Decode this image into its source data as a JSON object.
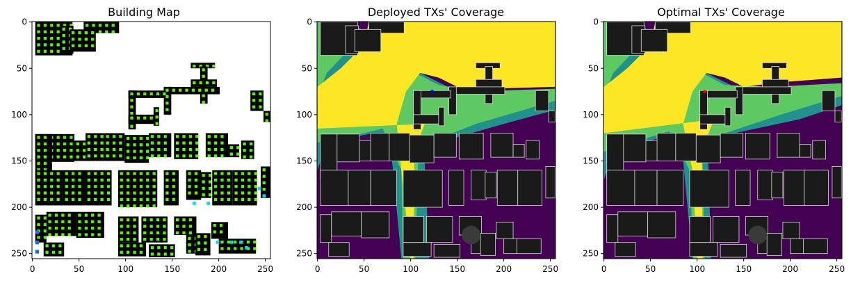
{
  "figure": {
    "panels": [
      {
        "id": "building-map",
        "title": "Building Map"
      },
      {
        "id": "deployed-coverage",
        "title": "Deployed TXs' Coverage"
      },
      {
        "id": "optimal-coverage",
        "title": "Optimal TXs' Coverage"
      }
    ]
  },
  "colors": {
    "building": "#000000",
    "candidate_tx": "#5cf00a",
    "highlight_cyan": "#00d7ff",
    "highlight_blue": "#1f6fd6",
    "coverage_high": "#fde725",
    "coverage_mid": "#5ec962",
    "coverage_low": "#21918c",
    "coverage_none": "#440154",
    "building_dark": "#1a1a1a",
    "building_edge": "#dddddd",
    "tx_deployed": "#0000ff",
    "tx_optimal": "#ff0000"
  },
  "chart_data": [
    {
      "type": "heatmap",
      "title": "Building Map",
      "xlim": [
        0,
        255
      ],
      "ylim": [
        255,
        0
      ],
      "xticks": [
        0,
        50,
        100,
        150,
        200,
        250
      ],
      "yticks": [
        0,
        50,
        100,
        150,
        200,
        250
      ],
      "grid": false
    },
    {
      "type": "heatmap",
      "title": "Deployed TXs' Coverage",
      "xlim": [
        0,
        255
      ],
      "ylim": [
        255,
        0
      ],
      "xticks": [
        0,
        50,
        100,
        150,
        200,
        250
      ],
      "yticks": [
        0,
        50,
        100,
        150,
        200,
        250
      ],
      "tx": [
        {
          "x": 123,
          "y": 75
        }
      ],
      "grid": false
    },
    {
      "type": "heatmap",
      "title": "Optimal TXs' Coverage",
      "xlim": [
        0,
        255
      ],
      "ylim": [
        255,
        0
      ],
      "xticks": [
        0,
        50,
        100,
        150,
        200,
        250
      ],
      "yticks": [
        0,
        50,
        100,
        150,
        200,
        250
      ],
      "tx": [
        {
          "x": 108,
          "y": 75
        }
      ],
      "grid": false
    }
  ]
}
